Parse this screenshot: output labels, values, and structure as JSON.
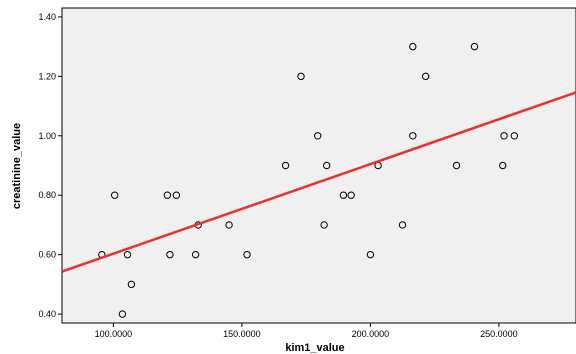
{
  "chart_data": {
    "type": "scatter",
    "title": "",
    "xlabel": "kim1_value",
    "ylabel": "creatinine_value",
    "xlim": [
      80,
      280
    ],
    "ylim": [
      0.37,
      1.43
    ],
    "x_ticks": [
      100,
      150,
      200,
      250
    ],
    "x_tick_labels": [
      "100.0000",
      "150.0000",
      "200.0000",
      "250.0000"
    ],
    "y_ticks": [
      0.4,
      0.6,
      0.8,
      1.0,
      1.2,
      1.4
    ],
    "y_tick_labels": [
      "0.40",
      "0.60",
      "0.80",
      "1.00",
      "1.20",
      "1.40"
    ],
    "grid": false,
    "background_color": "#f0f0f0",
    "fit_line_color": "#e8312f",
    "marker_color": "#000000",
    "points": [
      {
        "x": 95.5,
        "y": 0.6
      },
      {
        "x": 100.5,
        "y": 0.8
      },
      {
        "x": 103.5,
        "y": 0.4
      },
      {
        "x": 105.5,
        "y": 0.6
      },
      {
        "x": 107,
        "y": 0.5
      },
      {
        "x": 121,
        "y": 0.8
      },
      {
        "x": 122,
        "y": 0.6
      },
      {
        "x": 124.5,
        "y": 0.8
      },
      {
        "x": 132,
        "y": 0.6
      },
      {
        "x": 133,
        "y": 0.7
      },
      {
        "x": 145,
        "y": 0.7
      },
      {
        "x": 152,
        "y": 0.6
      },
      {
        "x": 167,
        "y": 0.9
      },
      {
        "x": 173,
        "y": 1.2
      },
      {
        "x": 179.5,
        "y": 1.0
      },
      {
        "x": 182,
        "y": 0.7
      },
      {
        "x": 183,
        "y": 0.9
      },
      {
        "x": 189.5,
        "y": 0.8
      },
      {
        "x": 192.5,
        "y": 0.8
      },
      {
        "x": 200,
        "y": 0.6
      },
      {
        "x": 203,
        "y": 0.9
      },
      {
        "x": 212.5,
        "y": 0.7
      },
      {
        "x": 216.5,
        "y": 1.3
      },
      {
        "x": 216.5,
        "y": 1.0
      },
      {
        "x": 221.5,
        "y": 1.2
      },
      {
        "x": 233.5,
        "y": 0.9
      },
      {
        "x": 240.5,
        "y": 1.3
      },
      {
        "x": 251.5,
        "y": 0.9
      },
      {
        "x": 252,
        "y": 1.0
      },
      {
        "x": 256,
        "y": 1.0
      }
    ],
    "fit_line": {
      "x": [
        80,
        280
      ],
      "y": [
        0.543,
        1.146
      ]
    }
  }
}
